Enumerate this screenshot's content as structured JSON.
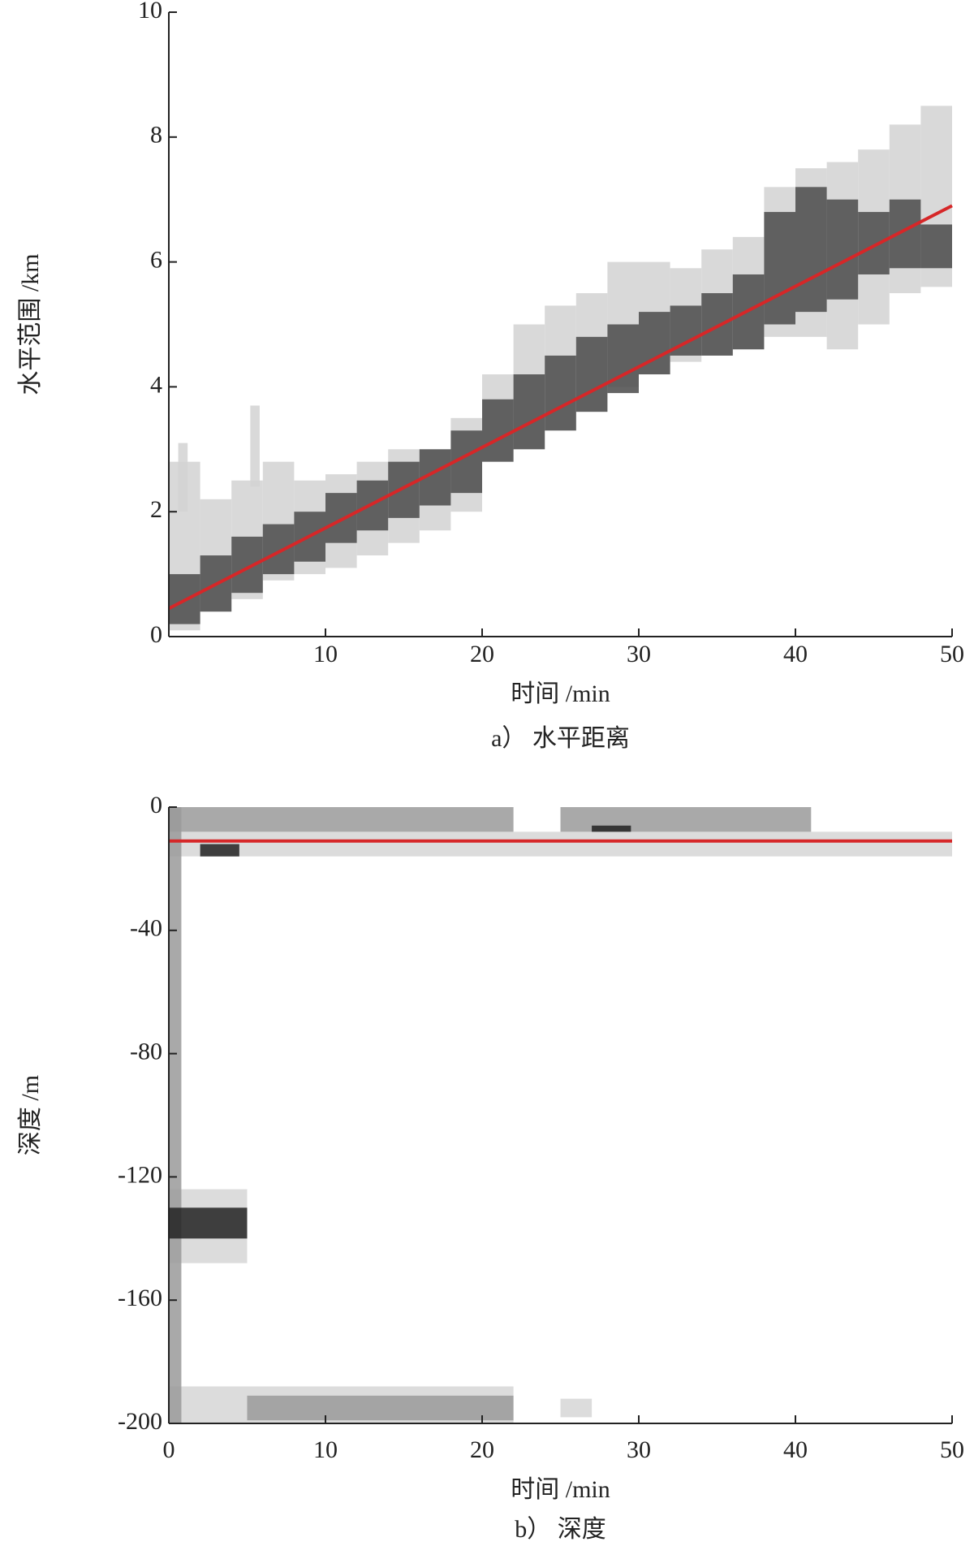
{
  "chart_data": [
    {
      "type": "heatmap",
      "xlabel": "时间 /min",
      "ylabel": "水平范围 /km",
      "caption": "a） 水平距离",
      "xlim": [
        0,
        50
      ],
      "ylim": [
        0,
        10
      ],
      "xticks": [
        10,
        20,
        30,
        40,
        50
      ],
      "yticks": [
        0,
        2,
        4,
        6,
        8,
        10
      ],
      "layers": [
        {
          "color": "#d2d2d2",
          "cells": [
            {
              "x": [
                0,
                2
              ],
              "y": [
                0.1,
                2.8
              ]
            },
            {
              "x": [
                0.6,
                1.2
              ],
              "y": [
                2.0,
                3.1
              ]
            },
            {
              "x": [
                2,
                4
              ],
              "y": [
                0.4,
                2.2
              ]
            },
            {
              "x": [
                4,
                6
              ],
              "y": [
                0.6,
                2.5
              ]
            },
            {
              "x": [
                5.2,
                5.8
              ],
              "y": [
                2.4,
                3.7
              ]
            },
            {
              "x": [
                6,
                8
              ],
              "y": [
                0.9,
                2.8
              ]
            },
            {
              "x": [
                8,
                10
              ],
              "y": [
                1.0,
                2.5
              ]
            },
            {
              "x": [
                10,
                12
              ],
              "y": [
                1.1,
                2.6
              ]
            },
            {
              "x": [
                12,
                14
              ],
              "y": [
                1.3,
                2.8
              ]
            },
            {
              "x": [
                14,
                16
              ],
              "y": [
                1.5,
                3.0
              ]
            },
            {
              "x": [
                16,
                18
              ],
              "y": [
                1.7,
                3.0
              ]
            },
            {
              "x": [
                18,
                20
              ],
              "y": [
                2.0,
                3.5
              ]
            },
            {
              "x": [
                20,
                22
              ],
              "y": [
                2.8,
                4.2
              ]
            },
            {
              "x": [
                22,
                24
              ],
              "y": [
                3.0,
                5.0
              ]
            },
            {
              "x": [
                24,
                26
              ],
              "y": [
                3.3,
                5.3
              ]
            },
            {
              "x": [
                26,
                28
              ],
              "y": [
                3.6,
                5.5
              ]
            },
            {
              "x": [
                28,
                30
              ],
              "y": [
                4.0,
                6.0
              ]
            },
            {
              "x": [
                30,
                32
              ],
              "y": [
                4.2,
                6.0
              ]
            },
            {
              "x": [
                32,
                34
              ],
              "y": [
                4.4,
                5.9
              ]
            },
            {
              "x": [
                34,
                36
              ],
              "y": [
                4.5,
                6.2
              ]
            },
            {
              "x": [
                36,
                38
              ],
              "y": [
                4.6,
                6.4
              ]
            },
            {
              "x": [
                38,
                40
              ],
              "y": [
                4.8,
                7.2
              ]
            },
            {
              "x": [
                40,
                42
              ],
              "y": [
                4.8,
                7.5
              ]
            },
            {
              "x": [
                42,
                44
              ],
              "y": [
                4.6,
                7.6
              ]
            },
            {
              "x": [
                44,
                46
              ],
              "y": [
                5.0,
                7.8
              ]
            },
            {
              "x": [
                46,
                48
              ],
              "y": [
                5.5,
                8.2
              ]
            },
            {
              "x": [
                48,
                50
              ],
              "y": [
                5.6,
                8.5
              ]
            }
          ]
        },
        {
          "color": "#4a4a4a",
          "cells": [
            {
              "x": [
                0,
                2
              ],
              "y": [
                0.2,
                1.0
              ]
            },
            {
              "x": [
                2,
                4
              ],
              "y": [
                0.4,
                1.3
              ]
            },
            {
              "x": [
                4,
                6
              ],
              "y": [
                0.7,
                1.6
              ]
            },
            {
              "x": [
                6,
                8
              ],
              "y": [
                1.0,
                1.8
              ]
            },
            {
              "x": [
                8,
                10
              ],
              "y": [
                1.2,
                2.0
              ]
            },
            {
              "x": [
                10,
                12
              ],
              "y": [
                1.5,
                2.3
              ]
            },
            {
              "x": [
                12,
                14
              ],
              "y": [
                1.7,
                2.5
              ]
            },
            {
              "x": [
                14,
                16
              ],
              "y": [
                1.9,
                2.8
              ]
            },
            {
              "x": [
                16,
                18
              ],
              "y": [
                2.1,
                3.0
              ]
            },
            {
              "x": [
                18,
                20
              ],
              "y": [
                2.3,
                3.3
              ]
            },
            {
              "x": [
                20,
                22
              ],
              "y": [
                2.8,
                3.8
              ]
            },
            {
              "x": [
                22,
                24
              ],
              "y": [
                3.0,
                4.2
              ]
            },
            {
              "x": [
                24,
                26
              ],
              "y": [
                3.3,
                4.5
              ]
            },
            {
              "x": [
                26,
                28
              ],
              "y": [
                3.6,
                4.8
              ]
            },
            {
              "x": [
                28,
                30
              ],
              "y": [
                3.9,
                5.0
              ]
            },
            {
              "x": [
                30,
                32
              ],
              "y": [
                4.2,
                5.2
              ]
            },
            {
              "x": [
                32,
                34
              ],
              "y": [
                4.5,
                5.3
              ]
            },
            {
              "x": [
                34,
                36
              ],
              "y": [
                4.5,
                5.5
              ]
            },
            {
              "x": [
                36,
                38
              ],
              "y": [
                4.6,
                5.8
              ]
            },
            {
              "x": [
                38,
                40
              ],
              "y": [
                5.0,
                6.8
              ]
            },
            {
              "x": [
                40,
                42
              ],
              "y": [
                5.2,
                7.2
              ]
            },
            {
              "x": [
                42,
                44
              ],
              "y": [
                5.4,
                7.0
              ]
            },
            {
              "x": [
                44,
                46
              ],
              "y": [
                5.8,
                6.8
              ]
            },
            {
              "x": [
                46,
                48
              ],
              "y": [
                5.9,
                7.0
              ]
            },
            {
              "x": [
                48,
                50
              ],
              "y": [
                5.9,
                6.6
              ]
            }
          ]
        }
      ],
      "line": {
        "color": "#d62728",
        "x": [
          0,
          50
        ],
        "y": [
          0.45,
          6.9
        ]
      }
    },
    {
      "type": "heatmap",
      "xlabel": "时间 /min",
      "ylabel": "深度 /m",
      "caption": "b） 深度",
      "xlim": [
        0,
        50
      ],
      "ylim": [
        -200,
        0
      ],
      "xticks": [
        0,
        10,
        20,
        30,
        40,
        50
      ],
      "yticks": [
        0,
        -40,
        -80,
        -120,
        -160,
        -200
      ],
      "layers": [
        {
          "color": "#d6d6d6",
          "cells": [
            {
              "x": [
                0,
                50
              ],
              "y": [
                -16,
                -8
              ]
            },
            {
              "x": [
                0,
                5
              ],
              "y": [
                -148,
                -124
              ]
            },
            {
              "x": [
                0,
                22
              ],
              "y": [
                -200,
                -188
              ]
            },
            {
              "x": [
                25,
                27
              ],
              "y": [
                -198,
                -192
              ]
            }
          ]
        },
        {
          "color": "#9a9a9a",
          "cells": [
            {
              "x": [
                0,
                22
              ],
              "y": [
                -8,
                0
              ]
            },
            {
              "x": [
                25,
                41
              ],
              "y": [
                -8,
                0
              ]
            },
            {
              "x": [
                0,
                0.8
              ],
              "y": [
                -200,
                0
              ]
            },
            {
              "x": [
                5,
                22
              ],
              "y": [
                -199,
                -191
              ]
            }
          ]
        },
        {
          "color": "#222222",
          "cells": [
            {
              "x": [
                0,
                5
              ],
              "y": [
                -140,
                -130
              ]
            },
            {
              "x": [
                2,
                4.5
              ],
              "y": [
                -16,
                -12
              ]
            },
            {
              "x": [
                27,
                29.5
              ],
              "y": [
                -8,
                -6
              ]
            }
          ]
        }
      ],
      "line": {
        "color": "#d62728",
        "x": [
          0,
          50
        ],
        "y": [
          -11,
          -11
        ]
      }
    }
  ]
}
